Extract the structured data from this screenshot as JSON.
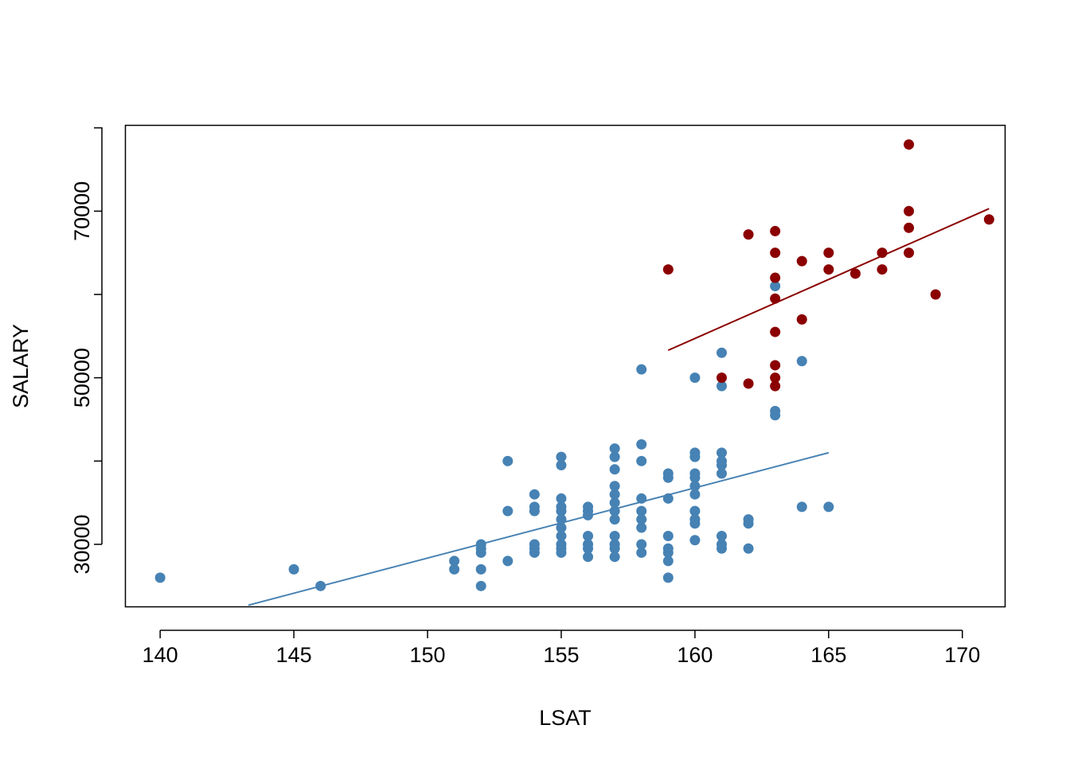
{
  "chart_data": {
    "type": "scatter",
    "title": "",
    "xlabel": "LSAT",
    "ylabel": "SALARY",
    "xlim": [
      138.7,
      171.6
    ],
    "ylim": [
      22500,
      80300
    ],
    "xticks": [
      140,
      145,
      150,
      155,
      160,
      165,
      170
    ],
    "yticks": [
      30000,
      50000,
      70000
    ],
    "yticks_minor": [
      40000,
      60000
    ],
    "grid": false,
    "legend": "none",
    "colors": {
      "series_a": "#4682B4",
      "series_b": "#8B0000"
    },
    "series": [
      {
        "color": "#4682B4",
        "points": [
          [
            140,
            26000
          ],
          [
            145,
            27000
          ],
          [
            146,
            25000
          ],
          [
            151,
            27000
          ],
          [
            151,
            28000
          ],
          [
            152,
            25000
          ],
          [
            152,
            27000
          ],
          [
            152,
            29000
          ],
          [
            152,
            29500
          ],
          [
            152,
            30000
          ],
          [
            153,
            28000
          ],
          [
            153,
            34000
          ],
          [
            153,
            40000
          ],
          [
            154,
            29000
          ],
          [
            154,
            29500
          ],
          [
            154,
            30000
          ],
          [
            154,
            34000
          ],
          [
            154,
            34500
          ],
          [
            154,
            36000
          ],
          [
            155,
            29000
          ],
          [
            155,
            29500
          ],
          [
            155,
            30000
          ],
          [
            155,
            31000
          ],
          [
            155,
            32000
          ],
          [
            155,
            33000
          ],
          [
            155,
            34000
          ],
          [
            155,
            34500
          ],
          [
            155,
            35500
          ],
          [
            155,
            39500
          ],
          [
            155,
            40500
          ],
          [
            156,
            28500
          ],
          [
            156,
            29500
          ],
          [
            156,
            30000
          ],
          [
            156,
            31000
          ],
          [
            156,
            33500
          ],
          [
            156,
            34000
          ],
          [
            156,
            34500
          ],
          [
            157,
            28500
          ],
          [
            157,
            29500
          ],
          [
            157,
            30000
          ],
          [
            157,
            31000
          ],
          [
            157,
            33000
          ],
          [
            157,
            34000
          ],
          [
            157,
            35000
          ],
          [
            157,
            36000
          ],
          [
            157,
            37000
          ],
          [
            157,
            39000
          ],
          [
            157,
            40500
          ],
          [
            157,
            41500
          ],
          [
            158,
            29000
          ],
          [
            158,
            30000
          ],
          [
            158,
            32000
          ],
          [
            158,
            33000
          ],
          [
            158,
            34000
          ],
          [
            158,
            35500
          ],
          [
            158,
            40000
          ],
          [
            158,
            42000
          ],
          [
            158,
            51000
          ],
          [
            159,
            26000
          ],
          [
            159,
            28000
          ],
          [
            159,
            29000
          ],
          [
            159,
            29500
          ],
          [
            159,
            31000
          ],
          [
            159,
            35500
          ],
          [
            159,
            38000
          ],
          [
            159,
            38500
          ],
          [
            160,
            30500
          ],
          [
            160,
            32500
          ],
          [
            160,
            33000
          ],
          [
            160,
            34000
          ],
          [
            160,
            36000
          ],
          [
            160,
            37000
          ],
          [
            160,
            38000
          ],
          [
            160,
            38500
          ],
          [
            160,
            40500
          ],
          [
            160,
            41000
          ],
          [
            160,
            50000
          ],
          [
            161,
            29500
          ],
          [
            161,
            30000
          ],
          [
            161,
            31000
          ],
          [
            161,
            38500
          ],
          [
            161,
            39500
          ],
          [
            161,
            40000
          ],
          [
            161,
            41000
          ],
          [
            161,
            49000
          ],
          [
            161,
            53000
          ],
          [
            162,
            29500
          ],
          [
            162,
            32500
          ],
          [
            162,
            33000
          ],
          [
            163,
            45500
          ],
          [
            163,
            46000
          ],
          [
            163,
            61000
          ],
          [
            164,
            34500
          ],
          [
            164,
            52000
          ],
          [
            165,
            34500
          ]
        ],
        "fit_line": {
          "x": [
            143.3,
            165
          ],
          "y": [
            22700,
            41000
          ]
        }
      },
      {
        "color": "#8B0000",
        "points": [
          [
            159,
            63000
          ],
          [
            161,
            50000
          ],
          [
            162,
            49300
          ],
          [
            162,
            67200
          ],
          [
            163,
            49000
          ],
          [
            163,
            50000
          ],
          [
            163,
            51500
          ],
          [
            163,
            55500
          ],
          [
            163,
            59500
          ],
          [
            163,
            62000
          ],
          [
            163,
            65000
          ],
          [
            163,
            67600
          ],
          [
            164,
            57000
          ],
          [
            164,
            64000
          ],
          [
            165,
            63000
          ],
          [
            165,
            65000
          ],
          [
            166,
            62500
          ],
          [
            167,
            63000
          ],
          [
            167,
            65000
          ],
          [
            168,
            65000
          ],
          [
            168,
            68000
          ],
          [
            168,
            70000
          ],
          [
            168,
            78000
          ],
          [
            169,
            60000
          ],
          [
            171,
            69000
          ]
        ],
        "fit_line": {
          "x": [
            159,
            171
          ],
          "y": [
            53300,
            70300
          ]
        }
      }
    ]
  }
}
